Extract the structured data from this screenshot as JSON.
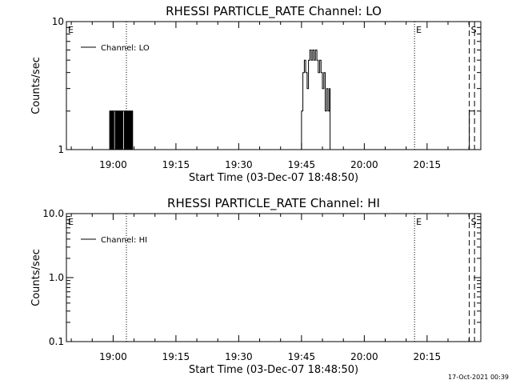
{
  "timestamp": "17-Oct-2021 00:39",
  "chart_data": [
    {
      "type": "line",
      "title": "RHESSI PARTICLE_RATE Channel: LO",
      "xlabel": "Start Time (03-Dec-07 18:48:50)",
      "ylabel": "Counts/sec",
      "yscale": "log",
      "ylim": [
        1,
        10
      ],
      "ytick_labels": [
        "1",
        "10"
      ],
      "xlim": [
        "18:48:50",
        "20:27:50"
      ],
      "xtick_labels": [
        "19:00",
        "19:15",
        "19:30",
        "19:45",
        "20:00",
        "20:15"
      ],
      "legend": {
        "position": "top-left",
        "entries": [
          "Channel: LO"
        ]
      },
      "series": [
        {
          "name": "Channel: LO",
          "color": "#000000",
          "points": [
            [
              "18:59:00",
              1
            ],
            [
              "18:59:10",
              2
            ],
            [
              "18:59:20",
              1
            ],
            [
              "18:59:30",
              2
            ],
            [
              "18:59:40",
              1
            ],
            [
              "18:59:50",
              2
            ],
            [
              "19:00:00",
              1
            ],
            [
              "19:00:10",
              2
            ],
            [
              "19:00:20",
              2
            ],
            [
              "19:00:30",
              1
            ],
            [
              "19:00:40",
              2
            ],
            [
              "19:00:50",
              1
            ],
            [
              "19:01:00",
              2
            ],
            [
              "19:01:10",
              1
            ],
            [
              "19:01:20",
              2
            ],
            [
              "19:01:30",
              1
            ],
            [
              "19:01:40",
              2
            ],
            [
              "19:01:50",
              1
            ],
            [
              "19:02:00",
              2
            ],
            [
              "19:02:10",
              1
            ],
            [
              "19:02:20",
              2
            ],
            [
              "19:02:30",
              2
            ],
            [
              "19:02:40",
              1
            ],
            [
              "19:02:50",
              2
            ],
            [
              "19:03:00",
              1
            ],
            [
              "19:03:10",
              2
            ],
            [
              "19:03:20",
              1
            ],
            [
              "19:03:30",
              2
            ],
            [
              "19:03:40",
              1
            ],
            [
              "19:03:50",
              2
            ],
            [
              "19:04:00",
              1
            ],
            [
              "19:04:10",
              2
            ],
            [
              "19:04:20",
              1
            ],
            [
              "19:04:30",
              2
            ],
            [
              "19:04:40",
              1
            ],
            [
              "19:44:50",
              1
            ],
            [
              "19:45:00",
              2
            ],
            [
              "19:45:20",
              4
            ],
            [
              "19:45:40",
              5
            ],
            [
              "19:46:00",
              4
            ],
            [
              "19:46:20",
              3
            ],
            [
              "19:46:40",
              5
            ],
            [
              "19:47:00",
              6
            ],
            [
              "19:47:20",
              5
            ],
            [
              "19:47:40",
              6
            ],
            [
              "19:48:00",
              5
            ],
            [
              "19:48:20",
              6
            ],
            [
              "19:48:40",
              5
            ],
            [
              "19:49:00",
              4
            ],
            [
              "19:49:20",
              5
            ],
            [
              "19:49:40",
              4
            ],
            [
              "19:50:00",
              3
            ],
            [
              "19:50:20",
              4
            ],
            [
              "19:50:40",
              2
            ],
            [
              "19:51:00",
              3
            ],
            [
              "19:51:20",
              2
            ],
            [
              "19:51:40",
              3
            ],
            [
              "19:51:50",
              1
            ],
            [
              "20:25:00",
              1
            ],
            [
              "20:25:05",
              2
            ],
            [
              "20:26:20",
              2
            ]
          ]
        }
      ],
      "markers": [
        {
          "time": "18:48:50",
          "style": "dotted",
          "label": "E"
        },
        {
          "time": "19:03:10",
          "style": "dotted",
          "label": ""
        },
        {
          "time": "20:12:00",
          "style": "dotted",
          "label": "E"
        },
        {
          "time": "20:25:05",
          "style": "dashed",
          "label": "S"
        },
        {
          "time": "20:26:20",
          "style": "dashed",
          "label": ""
        }
      ]
    },
    {
      "type": "line",
      "title": "RHESSI PARTICLE_RATE Channel: HI",
      "xlabel": "Start Time (03-Dec-07 18:48:50)",
      "ylabel": "Counts/sec",
      "yscale": "log",
      "ylim": [
        0.1,
        10
      ],
      "ytick_labels": [
        "0.1",
        "1.0",
        "10.0"
      ],
      "xlim": [
        "18:48:50",
        "20:27:50"
      ],
      "xtick_labels": [
        "19:00",
        "19:15",
        "19:30",
        "19:45",
        "20:00",
        "20:15"
      ],
      "legend": {
        "position": "top-left",
        "entries": [
          "Channel: HI"
        ]
      },
      "series": [
        {
          "name": "Channel: HI",
          "color": "#000000",
          "points": []
        }
      ],
      "markers": [
        {
          "time": "18:48:50",
          "style": "dotted",
          "label": "E"
        },
        {
          "time": "19:03:10",
          "style": "dotted",
          "label": ""
        },
        {
          "time": "20:12:00",
          "style": "dotted",
          "label": "E"
        },
        {
          "time": "20:25:05",
          "style": "dashed",
          "label": "S"
        },
        {
          "time": "20:26:20",
          "style": "dashed",
          "label": ""
        }
      ]
    }
  ]
}
